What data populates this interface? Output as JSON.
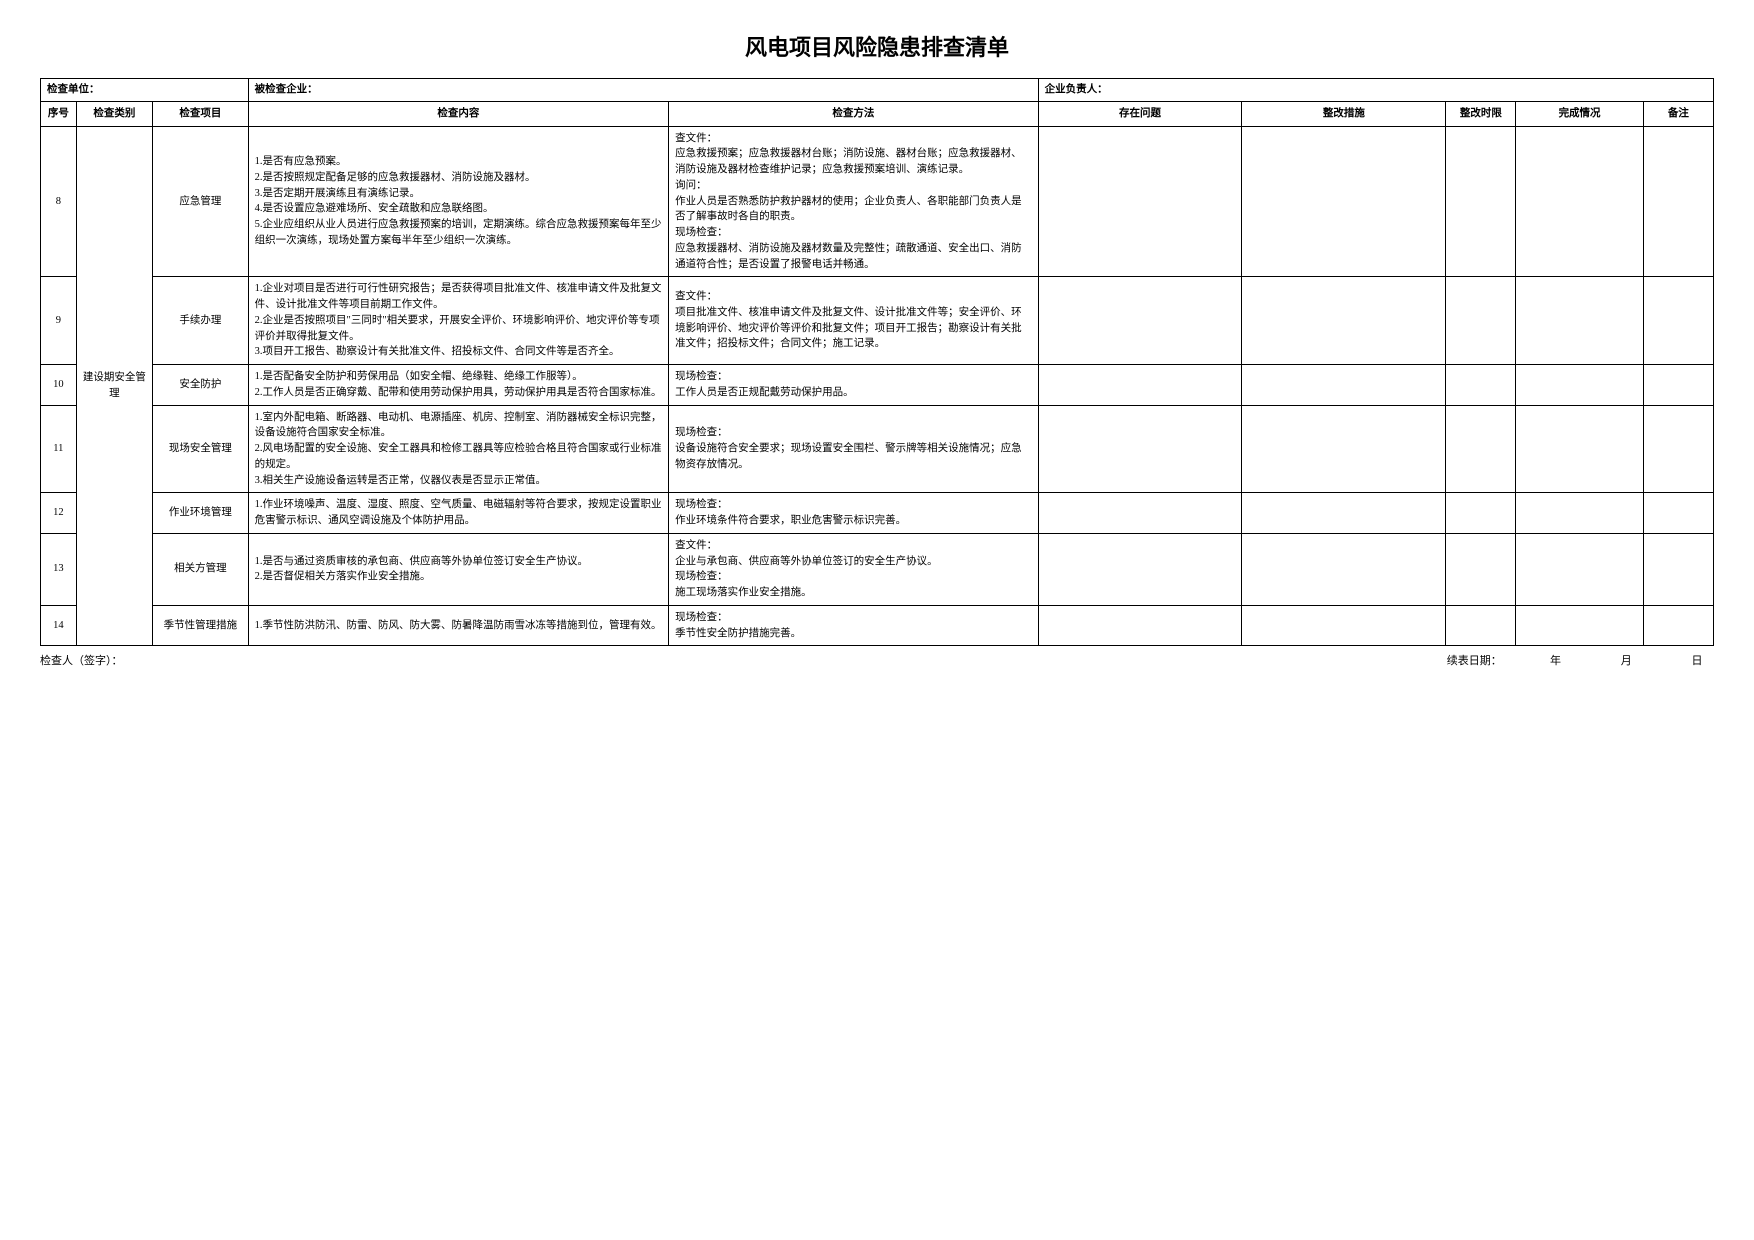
{
  "title": "风电项目风险隐患排查清单",
  "meta": {
    "check_unit_label": "检查单位：",
    "checked_enterprise_label": "被检查企业：",
    "enterprise_leader_label": "企业负责人："
  },
  "columns": {
    "seq": "序号",
    "category": "检查类别",
    "item": "检查项目",
    "content": "检查内容",
    "method": "检查方法",
    "problem": "存在问题",
    "measure": "整改措施",
    "deadline": "整改时限",
    "done": "完成情况",
    "note": "备注"
  },
  "category": "建设期安全管理",
  "rows": [
    {
      "seq": "8",
      "item": "应急管理",
      "content": "1.是否有应急预案。\n2.是否按照规定配备足够的应急救援器材、消防设施及器材。\n3.是否定期开展演练且有演练记录。\n4.是否设置应急避难场所、安全疏散和应急联络图。\n5.企业应组织从业人员进行应急救援预案的培训，定期演练。综合应急救援预案每年至少组织一次演练，现场处置方案每半年至少组织一次演练。",
      "method": "查文件：\n应急救援预案；应急救援器材台账；消防设施、器材台账；应急救援器材、消防设施及器材检查维护记录；应急救援预案培训、演练记录。\n询问：\n作业人员是否熟悉防护救护器材的使用；企业负责人、各职能部门负责人是否了解事故时各自的职责。\n现场检查：\n应急救援器材、消防设施及器材数量及完整性；疏散通道、安全出口、消防通道符合性；是否设置了报警电话并畅通。"
    },
    {
      "seq": "9",
      "item": "手续办理",
      "content": "1.企业对项目是否进行可行性研究报告；是否获得项目批准文件、核准申请文件及批复文件、设计批准文件等项目前期工作文件。\n2.企业是否按照项目\"三同时\"相关要求，开展安全评价、环境影响评价、地灾评价等专项评价并取得批复文件。\n3.项目开工报告、勘察设计有关批准文件、招投标文件、合同文件等是否齐全。",
      "method": "查文件：\n项目批准文件、核准申请文件及批复文件、设计批准文件等；安全评价、环境影响评价、地灾评价等评价和批复文件；项目开工报告；勘察设计有关批准文件；招投标文件；合同文件；施工记录。"
    },
    {
      "seq": "10",
      "item": "安全防护",
      "content": "1.是否配备安全防护和劳保用品（如安全帽、绝缘鞋、绝缘工作服等）。\n2.工作人员是否正确穿戴、配带和使用劳动保护用具，劳动保护用具是否符合国家标准。",
      "method": "现场检查：\n工作人员是否正规配戴劳动保护用品。"
    },
    {
      "seq": "11",
      "item": "现场安全管理",
      "content": "1.室内外配电箱、断路器、电动机、电源插座、机房、控制室、消防器械安全标识完整，设备设施符合国家安全标准。\n2.风电场配置的安全设施、安全工器具和检修工器具等应检验合格且符合国家或行业标准的规定。\n3.相关生产设施设备运转是否正常，仪器仪表是否显示正常值。",
      "method": "现场检查：\n设备设施符合安全要求；现场设置安全围栏、警示牌等相关设施情况；应急物资存放情况。"
    },
    {
      "seq": "12",
      "item": "作业环境管理",
      "content": "1.作业环境噪声、温度、湿度、照度、空气质量、电磁辐射等符合要求，按规定设置职业危害警示标识、通风空调设施及个体防护用品。",
      "method": "现场检查：\n作业环境条件符合要求，职业危害警示标识完善。"
    },
    {
      "seq": "13",
      "item": "相关方管理",
      "content": "1.是否与通过资质审核的承包商、供应商等外协单位签订安全生产协议。\n2.是否督促相关方落实作业安全措施。",
      "method": "查文件：\n企业与承包商、供应商等外协单位签订的安全生产协议。\n现场检查：\n施工现场落实作业安全措施。"
    },
    {
      "seq": "14",
      "item": "季节性管理措施",
      "content": "1.季节性防洪防汛、防雷、防风、防大雾、防暑降温防雨雪冰冻等措施到位，管理有效。",
      "method": "现场检查：\n季节性安全防护措施完善。"
    }
  ],
  "footer": {
    "checker_label": "检查人（签字）：",
    "date_label": "续表日期：",
    "year": "年",
    "month": "月",
    "day": "日"
  },
  "style": {
    "title_fontsize": 22,
    "body_fontsize": 10.5,
    "border_color": "#000000",
    "background_color": "#ffffff"
  }
}
